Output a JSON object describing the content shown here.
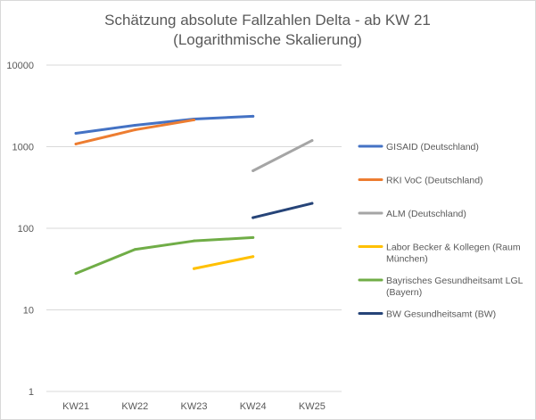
{
  "chart_data": {
    "type": "line",
    "title": [
      "Schätzung absolute Fallzahlen Delta - ab KW 21",
      "(Logarithmische Skalierung)"
    ],
    "xlabel": "",
    "ylabel": "",
    "yscale": "log",
    "ylim": [
      1,
      10000
    ],
    "yticks": [
      "1",
      "10",
      "100",
      "1000",
      "10000"
    ],
    "categories": [
      "KW21",
      "KW22",
      "KW23",
      "KW24",
      "KW25"
    ],
    "grid": true,
    "legend_position": "right",
    "series": [
      {
        "name": [
          "GISAID (Deutschland)"
        ],
        "color": "#4472c4",
        "values": [
          1460,
          1830,
          2180,
          2360,
          null
        ]
      },
      {
        "name": [
          "RKI VoC (Deutschland)"
        ],
        "color": "#ed7d31",
        "values": [
          1080,
          1610,
          2130,
          null,
          null
        ]
      },
      {
        "name": [
          "ALM (Deutschland)"
        ],
        "color": "#a5a5a5",
        "values": [
          null,
          null,
          null,
          507,
          1190
        ]
      },
      {
        "name": [
          "Labor Becker & Kollegen (Raum",
          "München)"
        ],
        "color": "#ffc000",
        "values": [
          null,
          null,
          32,
          45,
          null
        ]
      },
      {
        "name": [
          "Bayrisches Gesundheitsamt LGL",
          "(Bayern)"
        ],
        "color": "#70ad47",
        "values": [
          28,
          55,
          70,
          77,
          null
        ]
      },
      {
        "name": [
          "BW Gesundheitsamt (BW)"
        ],
        "color": "#264478",
        "values": [
          null,
          null,
          null,
          135,
          202
        ]
      }
    ]
  }
}
